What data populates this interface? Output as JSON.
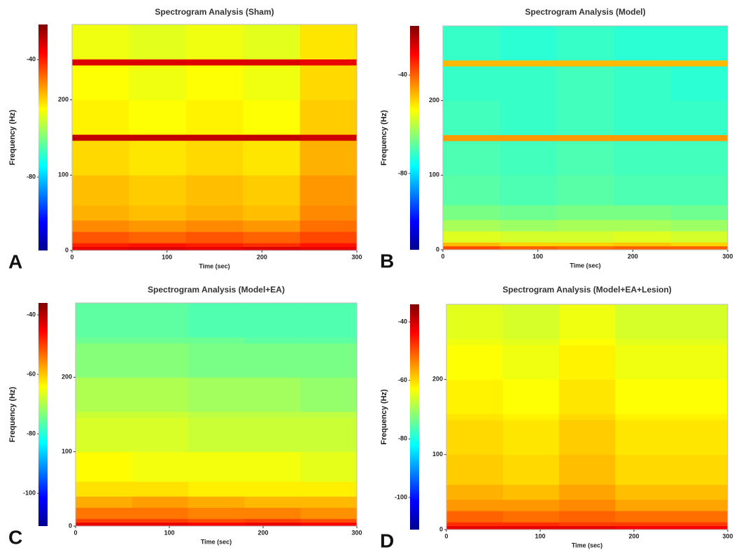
{
  "chart_data": [
    {
      "type": "heatmap",
      "panel": "A",
      "title": "Spectrogram Analysis (Sham)",
      "x_label": "Time (sec)",
      "y_label": "Frequency (Hz)",
      "colormap": "jet",
      "xlim": [
        0,
        300
      ],
      "xticks": [
        0,
        100,
        200,
        300
      ],
      "ylim": [
        0,
        300
      ],
      "yticks": [
        0,
        100,
        200
      ],
      "clim": [
        -105,
        -28
      ],
      "cticks": [
        -40,
        -80
      ],
      "x_edges": [
        0,
        60,
        120,
        180,
        240,
        300
      ],
      "y_edges": [
        0,
        5,
        10,
        25,
        40,
        60,
        100,
        146,
        154,
        200,
        246,
        254,
        300
      ],
      "values": [
        [
          -36,
          -35,
          -36,
          -35,
          -36
        ],
        [
          -40,
          -39,
          -40,
          -41,
          -39
        ],
        [
          -44,
          -45,
          -44,
          -45,
          -43
        ],
        [
          -48,
          -49,
          -48,
          -49,
          -46
        ],
        [
          -51,
          -52,
          -51,
          -52,
          -48
        ],
        [
          -52,
          -53,
          -52,
          -53,
          -49
        ],
        [
          -54,
          -55,
          -54,
          -55,
          -51
        ],
        [
          -33,
          -33,
          -33,
          -33,
          -34
        ],
        [
          -56,
          -57,
          -56,
          -57,
          -53
        ],
        [
          -57,
          -58,
          -57,
          -58,
          -54
        ],
        [
          -35,
          -35,
          -35,
          -35,
          -36
        ],
        [
          -58,
          -59,
          -58,
          -59,
          -55
        ]
      ]
    },
    {
      "type": "heatmap",
      "panel": "B",
      "title": "Spectrogram Analysis (Model)",
      "x_label": "Time (sec)",
      "y_label": "Frequency (Hz)",
      "colormap": "jet",
      "xlim": [
        0,
        300
      ],
      "xticks": [
        0,
        100,
        200,
        300
      ],
      "ylim": [
        0,
        300
      ],
      "yticks": [
        0,
        100,
        200
      ],
      "clim": [
        -111,
        -20
      ],
      "cticks": [
        -40,
        -80
      ],
      "x_edges": [
        0,
        60,
        120,
        180,
        240,
        300
      ],
      "y_edges": [
        0,
        5,
        10,
        25,
        40,
        60,
        100,
        146,
        154,
        200,
        246,
        254,
        300
      ],
      "values": [
        [
          -38,
          -40,
          -41,
          -40,
          -40
        ],
        [
          -48,
          -50,
          -50,
          -49,
          -50
        ],
        [
          -57,
          -58,
          -58,
          -57,
          -58
        ],
        [
          -62,
          -63,
          -62,
          -62,
          -63
        ],
        [
          -66,
          -67,
          -66,
          -66,
          -67
        ],
        [
          -69,
          -70,
          -69,
          -70,
          -70
        ],
        [
          -70,
          -71,
          -70,
          -71,
          -71
        ],
        [
          -45,
          -45,
          -45,
          -45,
          -45
        ],
        [
          -71,
          -72,
          -71,
          -72,
          -72
        ],
        [
          -72,
          -72,
          -71,
          -72,
          -73
        ],
        [
          -48,
          -48,
          -48,
          -48,
          -48
        ],
        [
          -72,
          -73,
          -72,
          -73,
          -73
        ]
      ]
    },
    {
      "type": "heatmap",
      "panel": "C",
      "title": "Spectrogram Analysis (Model+EA)",
      "x_label": "Time (sec)",
      "y_label": "Frequency (Hz)",
      "colormap": "jet",
      "xlim": [
        0,
        300
      ],
      "xticks": [
        0,
        100,
        200,
        300
      ],
      "ylim": [
        0,
        300
      ],
      "yticks": [
        0,
        100,
        200
      ],
      "clim": [
        -111,
        -36
      ],
      "cticks": [
        -40,
        -60,
        -80,
        -100
      ],
      "x_edges": [
        0,
        60,
        120,
        180,
        240,
        300
      ],
      "y_edges": [
        0,
        5,
        10,
        25,
        40,
        60,
        100,
        146,
        154,
        200,
        246,
        254,
        300
      ],
      "values": [
        [
          -44,
          -44,
          -45,
          -44,
          -45
        ],
        [
          -50,
          -50,
          -51,
          -50,
          -51
        ],
        [
          -54,
          -54,
          -55,
          -55,
          -56
        ],
        [
          -58,
          -57,
          -58,
          -59,
          -59
        ],
        [
          -62,
          -62,
          -63,
          -63,
          -63
        ],
        [
          -64,
          -65,
          -65,
          -65,
          -66
        ],
        [
          -67,
          -67,
          -68,
          -68,
          -68
        ],
        [
          -68,
          -68,
          -69,
          -69,
          -69
        ],
        [
          -70,
          -70,
          -71,
          -71,
          -72
        ],
        [
          -73,
          -73,
          -74,
          -74,
          -74
        ],
        [
          -75,
          -75,
          -75,
          -76,
          -76
        ],
        [
          -76,
          -76,
          -77,
          -77,
          -77
        ]
      ]
    },
    {
      "type": "heatmap",
      "panel": "D",
      "title": "Spectrogram Analysis (Model+EA+Lesion)",
      "x_label": "Time (sec)",
      "y_label": "Frequency (Hz)",
      "colormap": "jet",
      "xlim": [
        0,
        300
      ],
      "xticks": [
        0,
        100,
        200,
        300
      ],
      "ylim": [
        0,
        300
      ],
      "yticks": [
        0,
        100,
        200
      ],
      "clim": [
        -111,
        -34
      ],
      "cticks": [
        -40,
        -60,
        -80,
        -100
      ],
      "x_edges": [
        0,
        60,
        120,
        180,
        240,
        300
      ],
      "y_edges": [
        0,
        5,
        10,
        25,
        40,
        60,
        100,
        146,
        154,
        200,
        246,
        254,
        300
      ],
      "values": [
        [
          -42,
          -42,
          -42,
          -43,
          -43
        ],
        [
          -47,
          -47,
          -48,
          -48,
          -48
        ],
        [
          -51,
          -52,
          -51,
          -52,
          -52
        ],
        [
          -55,
          -55,
          -54,
          -56,
          -56
        ],
        [
          -57,
          -58,
          -56,
          -58,
          -58
        ],
        [
          -59,
          -60,
          -58,
          -60,
          -60
        ],
        [
          -60,
          -61,
          -59,
          -61,
          -61
        ],
        [
          -61,
          -62,
          -60,
          -62,
          -62
        ],
        [
          -62,
          -63,
          -61,
          -63,
          -63
        ],
        [
          -63,
          -64,
          -62,
          -64,
          -64
        ],
        [
          -64,
          -65,
          -63,
          -65,
          -65
        ],
        [
          -65,
          -66,
          -64,
          -66,
          -66
        ]
      ]
    }
  ]
}
